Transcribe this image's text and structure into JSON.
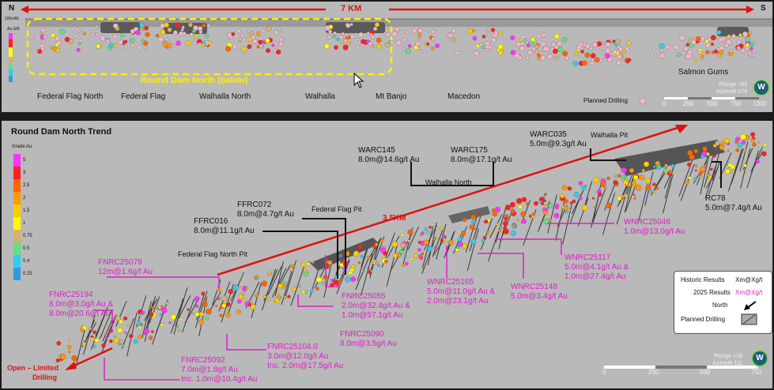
{
  "top_panel": {
    "north_label": "N",
    "south_label": "S",
    "distance_label": "7 KM",
    "elevation_label": "100mRL",
    "legend_title": "Au GM",
    "box_label": "Round Dam North (below)",
    "deposit_labels": [
      "Federal Flag North",
      "Federal Flag",
      "Walhalla North",
      "Walhalla",
      "Mt Banjo",
      "Macedon",
      "Salmon Gums"
    ],
    "planned_drilling_label": "Planned Drilling",
    "plunge": "Plunge +03",
    "azimuth": "Azimuth 079",
    "scale_ticks": [
      "0",
      "250",
      "500",
      "750",
      "1000"
    ]
  },
  "bottom_panel": {
    "title": "Round Dam North Trend",
    "grade_legend_title": "Grade Au",
    "grade_values": [
      "5",
      "3",
      "2.5",
      "2",
      "1.5",
      "1",
      "0.75",
      "0.5",
      "0.4",
      "0.25"
    ],
    "grade_colors": [
      "#ff33ff",
      "#ff2020",
      "#ff6600",
      "#ff9900",
      "#ffcc00",
      "#ffff00",
      "#d8b070",
      "#66dd88",
      "#33ccee",
      "#3399dd"
    ],
    "trend_label": "3.5KM",
    "open_label": [
      "Open – Limited",
      "Drilling"
    ],
    "pit_labels": {
      "walhalla_pit": "Walhalla Pit",
      "walhalla_north": "Walhalla North",
      "federal_flag_pit": "Federal Flag Pit",
      "federal_flag_north_pit": "Federal Flag North Pit"
    },
    "historic": [
      {
        "hole": "WARC035",
        "result": "5.0m@9.3g/t Au"
      },
      {
        "hole": "WARC145",
        "result": "8.0m@14.6g/t Au"
      },
      {
        "hole": "WARC175",
        "result": "8.0m@17.1g/t Au"
      },
      {
        "hole": "FFRC072",
        "result": "8.0m@4.7g/t Au"
      },
      {
        "hole": "FFRC016",
        "result": "8.0m@11.1g/t Au"
      },
      {
        "hole": "RC78",
        "result": "5.0m@7.4g/t Au"
      }
    ],
    "new_2025": [
      {
        "hole": "WNRC25046",
        "lines": [
          "1.0m@13.0g/t Au"
        ]
      },
      {
        "hole": "WNRC25117",
        "lines": [
          "5.0m@4.1g/t Au &",
          "1.0m@27.4g/t Au"
        ]
      },
      {
        "hole": "WNRC25148",
        "lines": [
          "5.0m@3.4g/t Au"
        ]
      },
      {
        "hole": "WNRC25165",
        "lines": [
          "5.0m@11.0g/t Au &",
          "2.0m@23.1g/t Au"
        ]
      },
      {
        "hole": "FNRC25055",
        "lines": [
          "2.0m@32.4g/t Au &",
          "1.0m@57.1g/t Au"
        ]
      },
      {
        "hole": "FNRC25090",
        "lines": [
          "8.0m@3.5g/t Au"
        ]
      },
      {
        "hole": "FNRC25078",
        "lines": [
          "12m@1.6g/t Au"
        ]
      },
      {
        "hole": "FNRC25194",
        "lines": [
          "8.0m@3.0g/t Au &",
          "8.0m@20.6g/t Au"
        ]
      },
      {
        "hole": "FNRC25104.0",
        "lines": [
          "3.0m@12.0g/t Au",
          "Inc. 2.0m@17.5g/t Au"
        ]
      },
      {
        "hole": "FNRC25092",
        "lines": [
          "7.0m@1.8g/t Au",
          "Inc. 1.0m@10.4g/t Au"
        ]
      }
    ],
    "legend": {
      "historic_label": "Historic Results",
      "historic_sample": "Xm@Xg/t",
      "new_label": "2025 Results",
      "new_sample": "Xm@Xg/t",
      "north_label": "North",
      "planned_label": "Planned Drilling"
    },
    "plunge": "Plunge +28",
    "azimuth": "Azimuth 111",
    "scale_ticks": [
      "0",
      "250",
      "500",
      "750"
    ]
  },
  "colors": {
    "historic": "#111111",
    "new": "#e01ec8",
    "arrow": "#e01010",
    "box": "#ffee00",
    "planned": "#f0b8c8"
  }
}
